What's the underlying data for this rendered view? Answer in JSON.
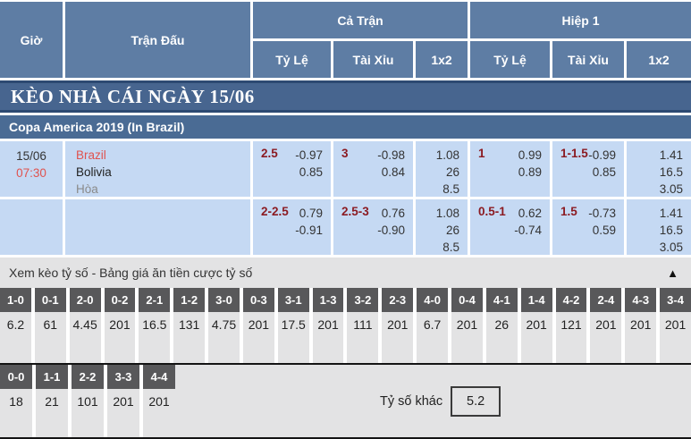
{
  "header": {
    "time_col": "Giờ",
    "match_col": "Trận Đấu",
    "full_time_group": "Cả Trận",
    "first_half_group": "Hiệp 1",
    "sub": {
      "handicap": "Tỷ Lệ",
      "over_under": "Tài Xỉu",
      "one_x_two": "1x2"
    }
  },
  "banner": {
    "title": "KÈO NHÀ CÁI NGÀY 15/06"
  },
  "league": {
    "name": "Copa America 2019 (In Brazil)"
  },
  "match": {
    "date": "15/06",
    "time": "07:30",
    "home": "Brazil",
    "away": "Bolivia",
    "draw": "Hòa"
  },
  "odds": {
    "row1": {
      "ft_hdp": {
        "line": "2.5",
        "v1": "-0.97",
        "v2": "0.85"
      },
      "ft_ou": {
        "line": "3",
        "v1": "-0.98",
        "v2": "0.84"
      },
      "ft_1x2": {
        "v1": "1.08",
        "v2": "26",
        "v3": "8.5"
      },
      "h1_hdp": {
        "line": "1",
        "v1": "0.99",
        "v2": "0.89"
      },
      "h1_ou": {
        "line": "1-1.5",
        "v1": "-0.99",
        "v2": "0.85"
      },
      "h1_1x2": {
        "v1": "1.41",
        "v2": "16.5",
        "v3": "3.05"
      }
    },
    "row2": {
      "ft_hdp": {
        "line": "2-2.5",
        "v1": "0.79",
        "v2": "-0.91"
      },
      "ft_ou": {
        "line": "2.5-3",
        "v1": "0.76",
        "v2": "-0.90"
      },
      "ft_1x2": {
        "v1": "1.08",
        "v2": "26",
        "v3": "8.5"
      },
      "h1_hdp": {
        "line": "0.5-1",
        "v1": "0.62",
        "v2": "-0.74"
      },
      "h1_ou": {
        "line": "1.5",
        "v1": "-0.73",
        "v2": "0.59"
      },
      "h1_1x2": {
        "v1": "1.41",
        "v2": "16.5",
        "v3": "3.05"
      }
    }
  },
  "correct_score": {
    "toggle_label": "Xem kèo tỷ số - Bảng giá ăn tiền cược tỷ số",
    "collapse_icon": "▲",
    "row1": [
      {
        "score": "1-0",
        "odd": "6.2"
      },
      {
        "score": "0-1",
        "odd": "61"
      },
      {
        "score": "2-0",
        "odd": "4.45"
      },
      {
        "score": "0-2",
        "odd": "201"
      },
      {
        "score": "2-1",
        "odd": "16.5"
      },
      {
        "score": "1-2",
        "odd": "131"
      },
      {
        "score": "3-0",
        "odd": "4.75"
      },
      {
        "score": "0-3",
        "odd": "201"
      },
      {
        "score": "3-1",
        "odd": "17.5"
      },
      {
        "score": "1-3",
        "odd": "201"
      },
      {
        "score": "3-2",
        "odd": "111"
      },
      {
        "score": "2-3",
        "odd": "201"
      },
      {
        "score": "4-0",
        "odd": "6.7"
      },
      {
        "score": "0-4",
        "odd": "201"
      },
      {
        "score": "4-1",
        "odd": "26"
      },
      {
        "score": "1-4",
        "odd": "201"
      },
      {
        "score": "4-2",
        "odd": "121"
      },
      {
        "score": "2-4",
        "odd": "201"
      },
      {
        "score": "4-3",
        "odd": "201"
      },
      {
        "score": "3-4",
        "odd": "201"
      }
    ],
    "row2": [
      {
        "score": "0-0",
        "odd": "18"
      },
      {
        "score": "1-1",
        "odd": "21"
      },
      {
        "score": "2-2",
        "odd": "101"
      },
      {
        "score": "3-3",
        "odd": "201"
      },
      {
        "score": "4-4",
        "odd": "201"
      }
    ],
    "other_score_label": "Tỷ số khác",
    "other_score_value": "5.2"
  },
  "colors": {
    "header_blue": "#5e7da4",
    "banner_blue": "#47658f",
    "league_blue": "#4a6b94",
    "row_light_blue": "#c5d9f3",
    "handicap_maroon": "#8b1b22",
    "team_red": "#e0524e",
    "score_header_gray": "#58585a",
    "section_gray": "#e3e3e4"
  }
}
